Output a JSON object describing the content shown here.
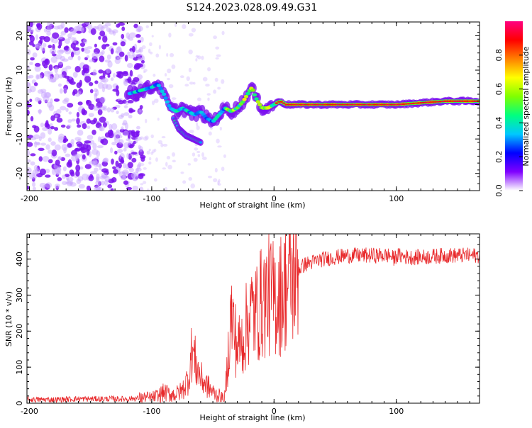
{
  "title": "S124.2023.028.09.49.G31",
  "chart_data": [
    {
      "type": "heatmap",
      "xlabel": "Height of straight line (km)",
      "ylabel": "Frequency (Hz)",
      "xlim": [
        -202,
        168
      ],
      "ylim": [
        -25,
        24
      ],
      "x_ticks": [
        -200,
        -100,
        0,
        100
      ],
      "y_ticks": [
        -20,
        -10,
        0,
        10,
        20
      ],
      "colorbar": {
        "label": "Normalized spectral amplitude",
        "range": [
          0,
          1
        ],
        "ticks": [
          "0.0",
          "0.2",
          "0.4",
          "0.6",
          "0.8"
        ],
        "colors": [
          "#ffffff",
          "#8000ff",
          "#0000ff",
          "#00c8ff",
          "#00ff80",
          "#80ff00",
          "#ffff00",
          "#ff8000",
          "#ff0000",
          "#ff0080"
        ]
      },
      "ridge": {
        "x": [
          -120,
          -110,
          -100,
          -95,
          -90,
          -85,
          -80,
          -75,
          -70,
          -65,
          -60,
          -55,
          -50,
          -45,
          -40,
          -35,
          -30,
          -25,
          -20,
          -18,
          -15,
          -10,
          -5,
          0,
          5,
          10,
          20,
          40,
          60,
          80,
          100,
          120,
          140,
          168
        ],
        "y": [
          3,
          4,
          5,
          6,
          3,
          -1,
          -2,
          -1,
          -2,
          -3,
          -2,
          -4,
          -5,
          -3,
          -1,
          -2,
          -1,
          1,
          4,
          5,
          2,
          -1,
          -1,
          0,
          1,
          0,
          0,
          0,
          0,
          0,
          0,
          0.5,
          1,
          1
        ]
      },
      "branch": {
        "x": [
          -82,
          -78,
          -72,
          -66,
          -60
        ],
        "y": [
          -4,
          -7,
          -9,
          -10,
          -11
        ]
      }
    },
    {
      "type": "line",
      "xlabel": "Height of straight line (km)",
      "ylabel": "SNR (10 * v/v)",
      "xlim": [
        -202,
        168
      ],
      "ylim": [
        0,
        470
      ],
      "x_ticks": [
        -200,
        -100,
        0,
        100
      ],
      "y_ticks": [
        0,
        100,
        200,
        300,
        400
      ],
      "color": "#e8282a",
      "series": {
        "name": "SNR",
        "x": [
          -202,
          -180,
          -160,
          -140,
          -120,
          -110,
          -100,
          -95,
          -90,
          -85,
          -80,
          -75,
          -70,
          -67,
          -64,
          -60,
          -55,
          -50,
          -45,
          -42,
          -40,
          -37,
          -35,
          -30,
          -25,
          -20,
          -15,
          -10,
          -5,
          0,
          5,
          10,
          15,
          20,
          25,
          30,
          40,
          50,
          60,
          70,
          80,
          90,
          95,
          98,
          100,
          110,
          120,
          140,
          168
        ],
        "y": [
          10,
          10,
          12,
          12,
          12,
          14,
          15,
          20,
          30,
          25,
          25,
          35,
          70,
          150,
          110,
          70,
          50,
          30,
          20,
          15,
          20,
          160,
          250,
          150,
          180,
          250,
          250,
          280,
          300,
          290,
          300,
          330,
          350,
          370,
          385,
          390,
          400,
          405,
          410,
          410,
          410,
          410,
          410,
          400,
          410,
          405,
          405,
          410,
          410
        ]
      }
    }
  ]
}
